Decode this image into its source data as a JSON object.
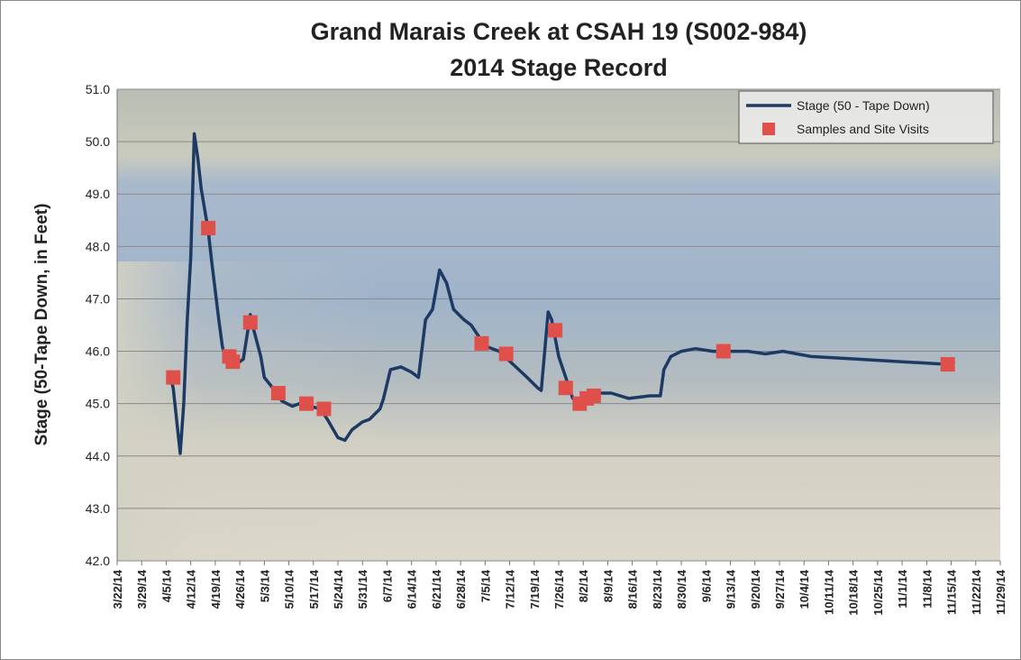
{
  "chart_data": {
    "type": "line",
    "title": "Grand Marais Creek at CSAH 19 (S002-984)",
    "subtitle": "2014 Stage Record",
    "y_label": "Stage (50-Tape Down, in Feet)",
    "xlim": [
      "3/22/14",
      "11/29/14"
    ],
    "xticks": [
      "3/22/14",
      "3/29/14",
      "4/5/14",
      "4/12/14",
      "4/19/14",
      "4/26/14",
      "5/3/14",
      "5/10/14",
      "5/17/14",
      "5/24/14",
      "5/31/14",
      "6/7/14",
      "6/14/14",
      "6/21/14",
      "6/28/14",
      "7/5/14",
      "7/12/14",
      "7/19/14",
      "7/26/14",
      "8/2/14",
      "8/9/14",
      "8/16/14",
      "8/23/14",
      "8/30/14",
      "9/6/14",
      "9/13/14",
      "9/20/14",
      "9/27/14",
      "10/4/14",
      "10/11/14",
      "10/18/14",
      "10/25/14",
      "11/1/14",
      "11/8/14",
      "11/15/14",
      "11/22/14",
      "11/29/14"
    ],
    "ylim": [
      42,
      51
    ],
    "yticks": [
      {
        "value": 42,
        "label": "42.0"
      },
      {
        "value": 43,
        "label": "43.0"
      },
      {
        "value": 44,
        "label": "44.0"
      },
      {
        "value": 45,
        "label": "45.0"
      },
      {
        "value": 46,
        "label": "46.0"
      },
      {
        "value": 47,
        "label": "47.0"
      },
      {
        "value": 48,
        "label": "48.0"
      },
      {
        "value": 49,
        "label": "49.0"
      },
      {
        "value": 50,
        "label": "50.0"
      },
      {
        "value": 51,
        "label": "51.0"
      }
    ],
    "grid": true,
    "legend": "top-right",
    "series": [
      {
        "name": "Stage (50 - Tape Down)",
        "type": "line",
        "color": "#1c3a63",
        "x": [
          "4/6/14",
          "4/7/14",
          "4/9/14",
          "4/10/14",
          "4/11/14",
          "4/12/14",
          "4/13/14",
          "4/14/14",
          "4/15/14",
          "4/17/14",
          "4/18/14",
          "4/20/14",
          "4/21/14",
          "4/22/14",
          "4/24/14",
          "4/26/14",
          "4/27/14",
          "4/29/14",
          "4/30/14",
          "5/2/14",
          "5/3/14",
          "5/6/14",
          "5/8/14",
          "5/11/14",
          "5/13/14",
          "5/16/14",
          "5/19/14",
          "5/21/14",
          "5/24/14",
          "5/26/14",
          "5/28/14",
          "5/31/14",
          "6/2/14",
          "6/5/14",
          "6/6/14",
          "6/8/14",
          "6/11/14",
          "6/14/14",
          "6/16/14",
          "6/18/14",
          "6/20/14",
          "6/22/14",
          "6/24/14",
          "6/26/14",
          "6/29/14",
          "7/1/14",
          "7/3/14",
          "7/5/14",
          "7/9/14",
          "7/13/14",
          "7/17/14",
          "7/20/14",
          "7/21/14",
          "7/23/14",
          "7/24/14",
          "7/26/14",
          "7/28/14",
          "7/30/14",
          "8/1/14",
          "8/5/14",
          "8/10/14",
          "8/15/14",
          "8/21/14",
          "8/24/14",
          "8/25/14",
          "8/27/14",
          "8/30/14",
          "9/3/14",
          "9/8/14",
          "9/13/14",
          "9/18/14",
          "9/23/14",
          "9/28/14",
          "10/6/14",
          "10/19/14",
          "11/1/14",
          "11/14/14",
          "11/16/14"
        ],
        "values": [
          45.55,
          45.3,
          44.05,
          45.0,
          46.6,
          47.8,
          50.15,
          49.7,
          49.1,
          48.3,
          47.7,
          46.6,
          46.1,
          45.8,
          45.7,
          45.8,
          45.85,
          46.7,
          46.4,
          45.9,
          45.5,
          45.25,
          45.05,
          44.95,
          45.0,
          44.95,
          44.9,
          44.7,
          44.35,
          44.3,
          44.5,
          44.65,
          44.7,
          44.9,
          45.1,
          45.65,
          45.7,
          45.6,
          45.5,
          46.6,
          46.8,
          47.55,
          47.3,
          46.8,
          46.6,
          46.5,
          46.3,
          46.1,
          46.0,
          45.75,
          45.5,
          45.3,
          45.25,
          46.75,
          46.6,
          45.9,
          45.5,
          45.1,
          45.05,
          45.2,
          45.2,
          45.1,
          45.15,
          45.15,
          45.65,
          45.9,
          46.0,
          46.05,
          46.0,
          46.0,
          46.0,
          45.95,
          46.0,
          45.9,
          45.85,
          45.8,
          45.75,
          45.8
        ]
      },
      {
        "name": "Samples and Site Visits",
        "type": "scatter",
        "color": "#e0504a",
        "x": [
          "4/7/14",
          "4/17/14",
          "4/23/14",
          "4/24/14",
          "4/29/14",
          "5/7/14",
          "5/15/14",
          "5/20/14",
          "7/4/14",
          "7/11/14",
          "7/25/14",
          "7/28/14",
          "8/1/14",
          "8/3/14",
          "8/5/14",
          "9/11/14",
          "11/14/14"
        ],
        "values": [
          45.5,
          48.35,
          45.9,
          45.8,
          46.55,
          45.2,
          45.0,
          44.9,
          46.15,
          45.95,
          46.4,
          45.3,
          45.0,
          45.1,
          45.15,
          46.0,
          45.75
        ]
      }
    ]
  }
}
